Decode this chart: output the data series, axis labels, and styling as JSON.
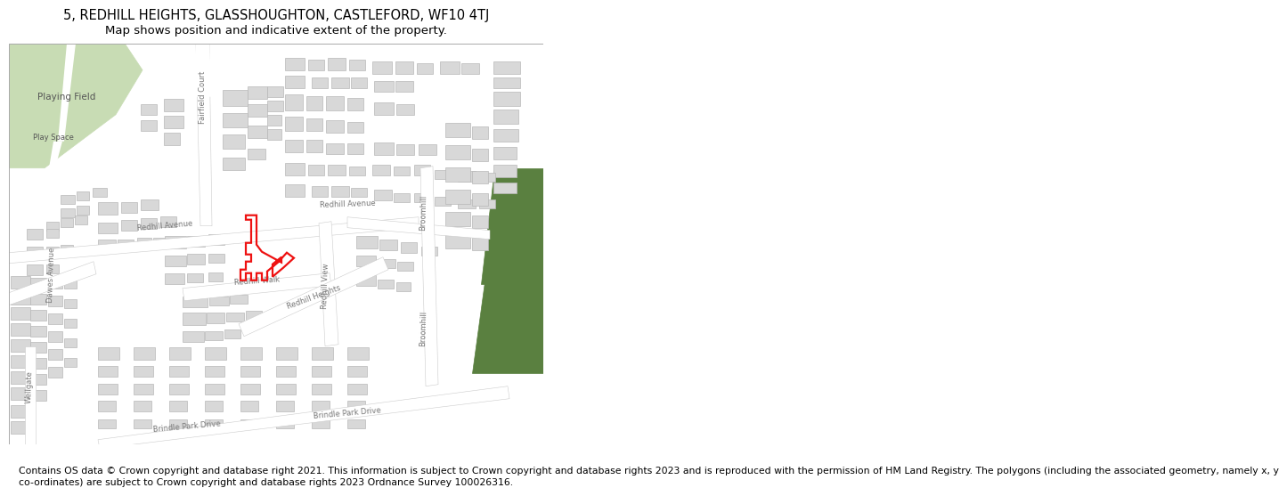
{
  "title_line1": "5, REDHILL HEIGHTS, GLASSHOUGHTON, CASTLEFORD, WF10 4TJ",
  "title_line2": "Map shows position and indicative extent of the property.",
  "footer_text": "Contains OS data © Crown copyright and database right 2021. This information is subject to Crown copyright and database rights 2023 and is reproduced with the permission of\nHM Land Registry. The polygons (including the associated geometry, namely x, y co-ordinates) are subject to Crown copyright and database rights 2023 Ordnance Survey\n100026316.",
  "title_fontsize": 10.5,
  "subtitle_fontsize": 9.5,
  "footer_fontsize": 7.8,
  "map_bg": "#f8f8f8",
  "bldg_fill": "#d8d8d8",
  "bldg_edge": "#b8b8b8",
  "road_fill": "#ffffff",
  "road_edge": "#cccccc",
  "green1": "#c8dcb4",
  "green2": "#5a8040",
  "red_color": "#ee1111",
  "red_lw": 1.6,
  "lc": "#777777",
  "lfs": 6.0
}
